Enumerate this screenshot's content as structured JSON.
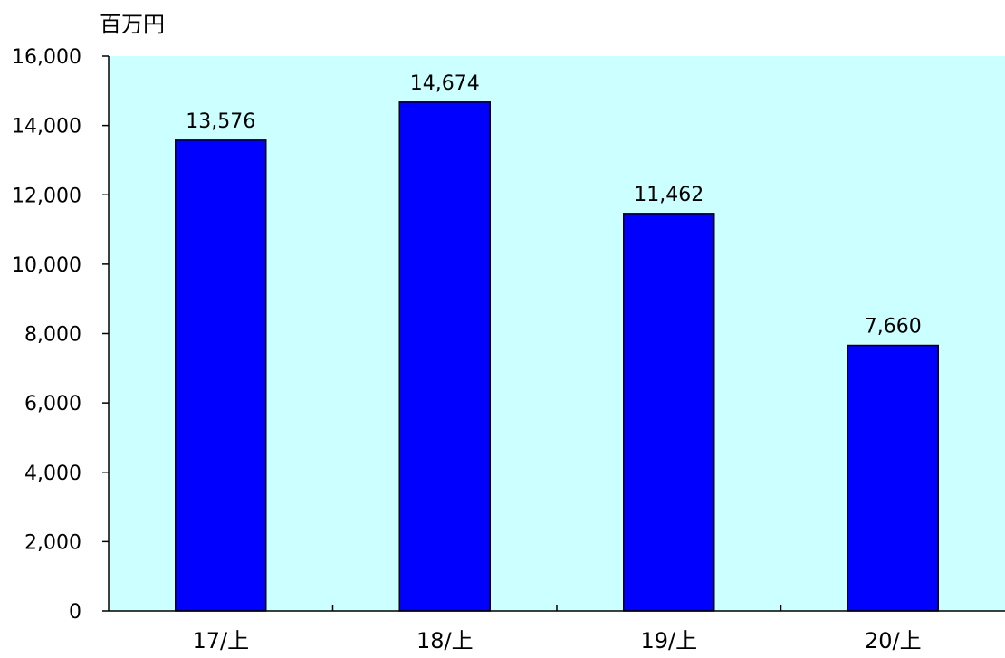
{
  "chart_data": {
    "type": "bar",
    "unit_label": "百万円",
    "categories": [
      "17/上",
      "18/上",
      "19/上",
      "20/上"
    ],
    "values": [
      13576,
      14674,
      11462,
      7660
    ],
    "value_labels": [
      "13,576",
      "14,674",
      "11,462",
      "7,660"
    ],
    "ylim": [
      0,
      16000
    ],
    "yticks": [
      0,
      2000,
      4000,
      6000,
      8000,
      10000,
      12000,
      14000,
      16000
    ],
    "ytick_labels": [
      "0",
      "2,000",
      "4,000",
      "6,000",
      "8,000",
      "10,000",
      "12,000",
      "14,000",
      "16,000"
    ],
    "grid": false,
    "legend": "none",
    "colors": {
      "bar": "#0000ff",
      "bar_border": "#000000",
      "plot_background": "#ccffff",
      "axis": "#000000"
    }
  }
}
